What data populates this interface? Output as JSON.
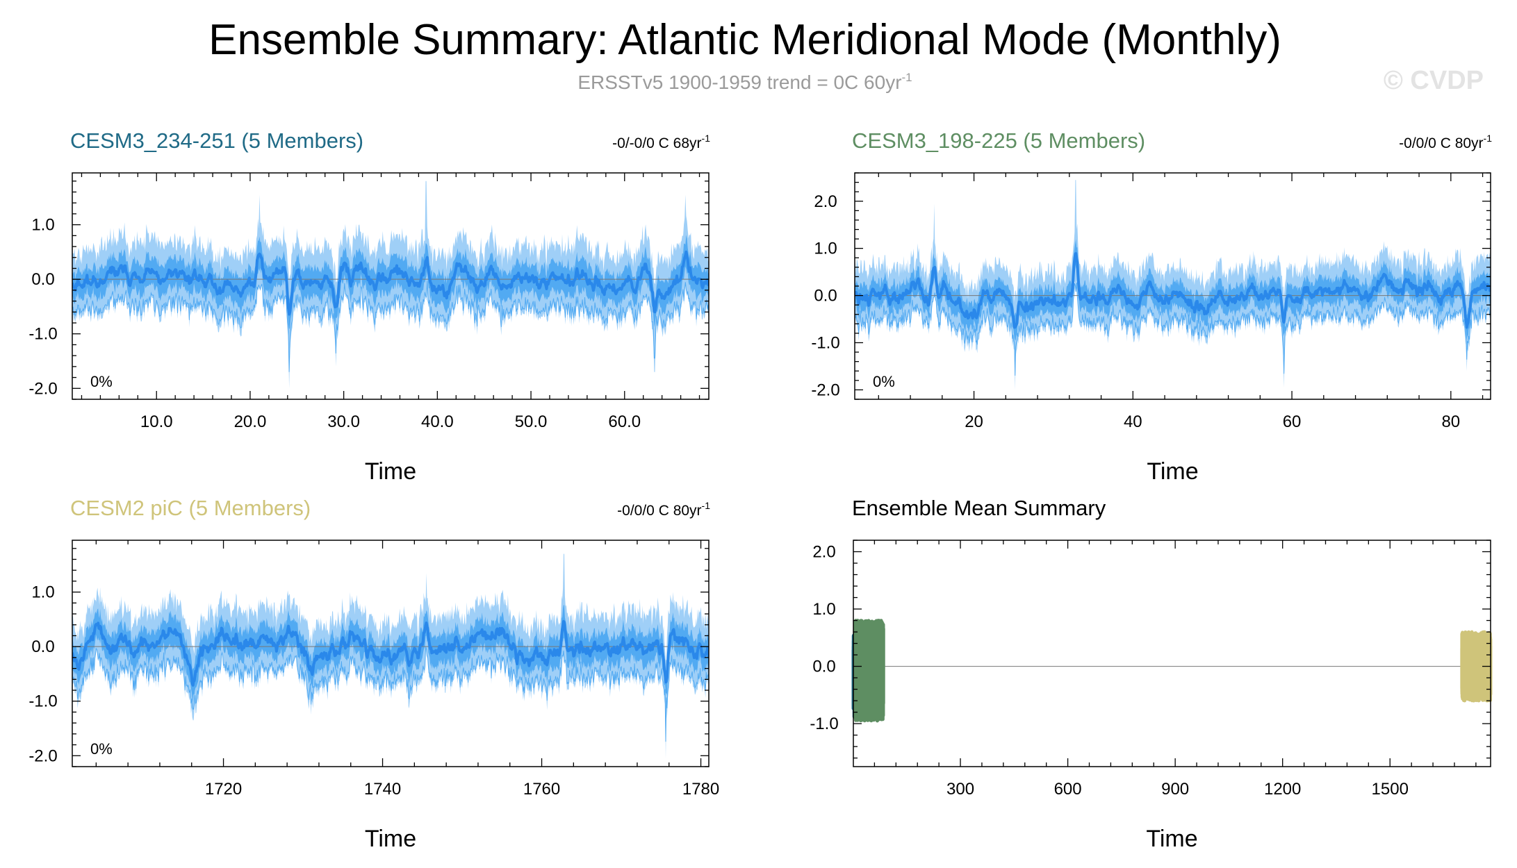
{
  "title": "Ensemble Summary: Atlantic Meridional Mode (Monthly)",
  "subtitle": "ERSSTv5 1900-1959 trend = 0C 60yr",
  "subtitle_sup": "-1",
  "logo": "© CVDP",
  "colors": {
    "series_band_light": "#9fcff7",
    "series_band_mid": "#52aaf2",
    "series_mean": "#2a88ea",
    "cesm3_234": "#1f6a86",
    "cesm3_198": "#5e8e62",
    "cesm2_pic": "#cfc47a"
  },
  "chart_data": [
    {
      "type": "line",
      "title": "CESM3_234-251 (5 Members)",
      "title_color": "#1f6a86",
      "trend": "-0/-0/0 C 68yr",
      "trend_sup": "-1",
      "percent": "0%",
      "xlabel": "Time",
      "xlim": [
        1,
        69
      ],
      "ylim": [
        -2.2,
        1.95
      ],
      "xticks": [
        10,
        20,
        30,
        40,
        50,
        60
      ],
      "xtick_labels": [
        "10.0",
        "20.0",
        "30.0",
        "40.0",
        "50.0",
        "60.0"
      ],
      "yticks": [
        -2,
        -1,
        0,
        1
      ],
      "ytick_labels": [
        "-2.0",
        "-1.0",
        "0.0",
        "1.0"
      ],
      "seed": 11,
      "anomaly_events": [
        {
          "x": 24.2,
          "value": -2.0
        },
        {
          "x": 38.8,
          "value": 1.8
        },
        {
          "x": 21.0,
          "value": 1.55
        },
        {
          "x": 29.2,
          "value": -1.6
        },
        {
          "x": 63.2,
          "value": -1.7
        },
        {
          "x": 66.5,
          "value": 1.55
        }
      ]
    },
    {
      "type": "line",
      "title": "CESM3_198-225 (5 Members)",
      "title_color": "#5e8e62",
      "trend": "-0/0/0 C 80yr",
      "trend_sup": "-1",
      "percent": "0%",
      "xlabel": "Time",
      "xlim": [
        5,
        85
      ],
      "ylim": [
        -2.2,
        2.6
      ],
      "xticks": [
        20,
        40,
        60,
        80
      ],
      "xtick_labels": [
        "20",
        "40",
        "60",
        "80"
      ],
      "yticks": [
        -2,
        -1,
        0,
        1,
        2
      ],
      "ytick_labels": [
        "-2.0",
        "-1.0",
        "0.0",
        "1.0",
        "2.0"
      ],
      "seed": 29,
      "anomaly_events": [
        {
          "x": 32.8,
          "value": 2.45
        },
        {
          "x": 25.2,
          "value": -2.0
        },
        {
          "x": 59.0,
          "value": -1.95
        },
        {
          "x": 15.0,
          "value": 1.95
        },
        {
          "x": 82.0,
          "value": -1.6
        }
      ]
    },
    {
      "type": "line",
      "title": "CESM2 piC (5 Members)",
      "title_color": "#cfc47a",
      "trend": "-0/0/0 C 80yr",
      "trend_sup": "-1",
      "percent": "0%",
      "xlabel": "Time",
      "xlim": [
        1701,
        1781
      ],
      "ylim": [
        -2.2,
        1.95
      ],
      "xticks": [
        1720,
        1740,
        1760,
        1780
      ],
      "xtick_labels": [
        "1720",
        "1740",
        "1760",
        "1780"
      ],
      "yticks": [
        -2,
        -1,
        0,
        1
      ],
      "ytick_labels": [
        "-2.0",
        "-1.0",
        "0.0",
        "1.0"
      ],
      "seed": 53,
      "anomaly_events": [
        {
          "x": 1762.8,
          "value": 1.7
        },
        {
          "x": 1775.6,
          "value": -2.05
        },
        {
          "x": 1716.2,
          "value": -1.35
        },
        {
          "x": 1731.0,
          "value": -1.25
        },
        {
          "x": 1745.5,
          "value": 1.35
        }
      ]
    },
    {
      "type": "line",
      "title": "Ensemble Mean Summary",
      "title_color": "#000000",
      "xlabel": "Time",
      "xlim": [
        1,
        1781
      ],
      "ylim": [
        -1.75,
        2.2
      ],
      "xticks": [
        300,
        600,
        900,
        1200,
        1500
      ],
      "xtick_labels": [
        "300",
        "600",
        "900",
        "1200",
        "1500"
      ],
      "yticks": [
        -1,
        0,
        1,
        2
      ],
      "ytick_labels": [
        "-1.0",
        "0.0",
        "1.0",
        "2.0"
      ],
      "series": [
        {
          "name": "CESM3_234-251",
          "color": "#1f6a86",
          "x_range": [
            1,
            69
          ],
          "min": -0.9,
          "max": 0.55,
          "seed": 71
        },
        {
          "name": "CESM3_198-225",
          "color": "#5e8e62",
          "x_range": [
            5,
            85
          ],
          "min": -0.95,
          "max": 0.8,
          "seed": 73
        },
        {
          "name": "CESM2 piC",
          "color": "#cfc47a",
          "x_range": [
            1701,
            1781
          ],
          "min": -0.6,
          "max": 0.6,
          "seed": 79
        }
      ]
    }
  ]
}
